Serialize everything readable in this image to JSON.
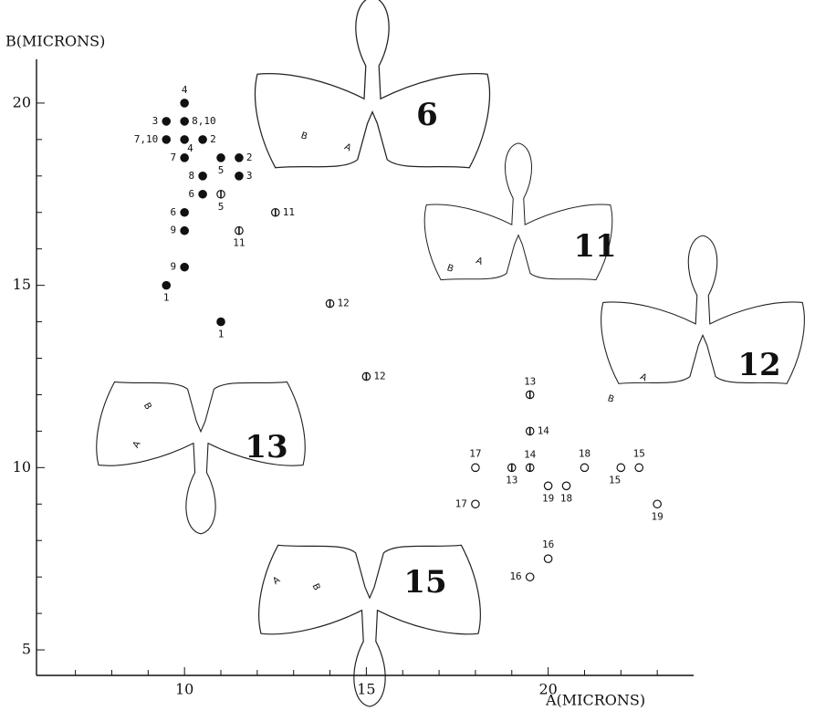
{
  "chart_data": {
    "type": "scatter",
    "xlabel": "A(MICRONS)",
    "ylabel": "B(MICRONS)",
    "xlim": [
      5.93,
      24
    ],
    "ylim": [
      4.3,
      21.2
    ],
    "xticks": [
      10,
      15,
      20
    ],
    "yticks": [
      5,
      10,
      15,
      20
    ],
    "xminorticks": [
      7,
      8,
      9,
      11,
      12,
      13,
      14,
      16,
      17,
      18,
      19,
      21,
      22,
      23
    ],
    "yminorticks": [
      6,
      7,
      8,
      9,
      11,
      12,
      13,
      14,
      16,
      17,
      18,
      19
    ],
    "color": "#111111",
    "series": [
      {
        "marker": "filled",
        "x": [
          10,
          9.5,
          10,
          9.5,
          10,
          10.5,
          10,
          11,
          11.5,
          10.5,
          11.5,
          10.5,
          10,
          10,
          10,
          9.5,
          11
        ],
        "y": [
          20,
          19.5,
          19.5,
          19,
          19,
          19,
          18.5,
          18.5,
          18.5,
          18,
          18,
          17.5,
          17,
          16.5,
          15.5,
          15,
          14
        ],
        "labels": [
          "4",
          "3",
          "8,10",
          "7,10",
          "4",
          "2",
          "7",
          "5",
          "2",
          "8",
          "3",
          "6",
          "6",
          "9",
          "9",
          "1",
          "1"
        ]
      },
      {
        "marker": "half",
        "x": [
          11,
          11.5,
          12.5,
          14,
          15,
          19.5,
          19.5,
          19.5,
          19
        ],
        "y": [
          17.5,
          16.5,
          17,
          14.5,
          12.5,
          12,
          11,
          10,
          10
        ],
        "labels": [
          "5",
          "11",
          "11",
          "12",
          "12",
          "13",
          "14",
          "14",
          "13"
        ]
      },
      {
        "marker": "open",
        "x": [
          18,
          18,
          20,
          20.5,
          21,
          22,
          22.5,
          23,
          20,
          19.5
        ],
        "y": [
          10,
          9,
          9.5,
          9.5,
          10,
          10,
          10,
          9,
          7.5,
          7
        ],
        "labels": [
          "17",
          "17",
          "19",
          "18",
          "18",
          "15",
          "15",
          "19",
          "16",
          "16"
        ]
      }
    ],
    "drawings": [
      {
        "label": "6",
        "a": "A",
        "b": "B"
      },
      {
        "label": "11",
        "a": "A",
        "b": "B"
      },
      {
        "label": "12",
        "a": "A",
        "b": "B"
      },
      {
        "label": "13",
        "a": "A",
        "b": "B"
      },
      {
        "label": "15",
        "a": "A",
        "b": "B"
      }
    ]
  }
}
